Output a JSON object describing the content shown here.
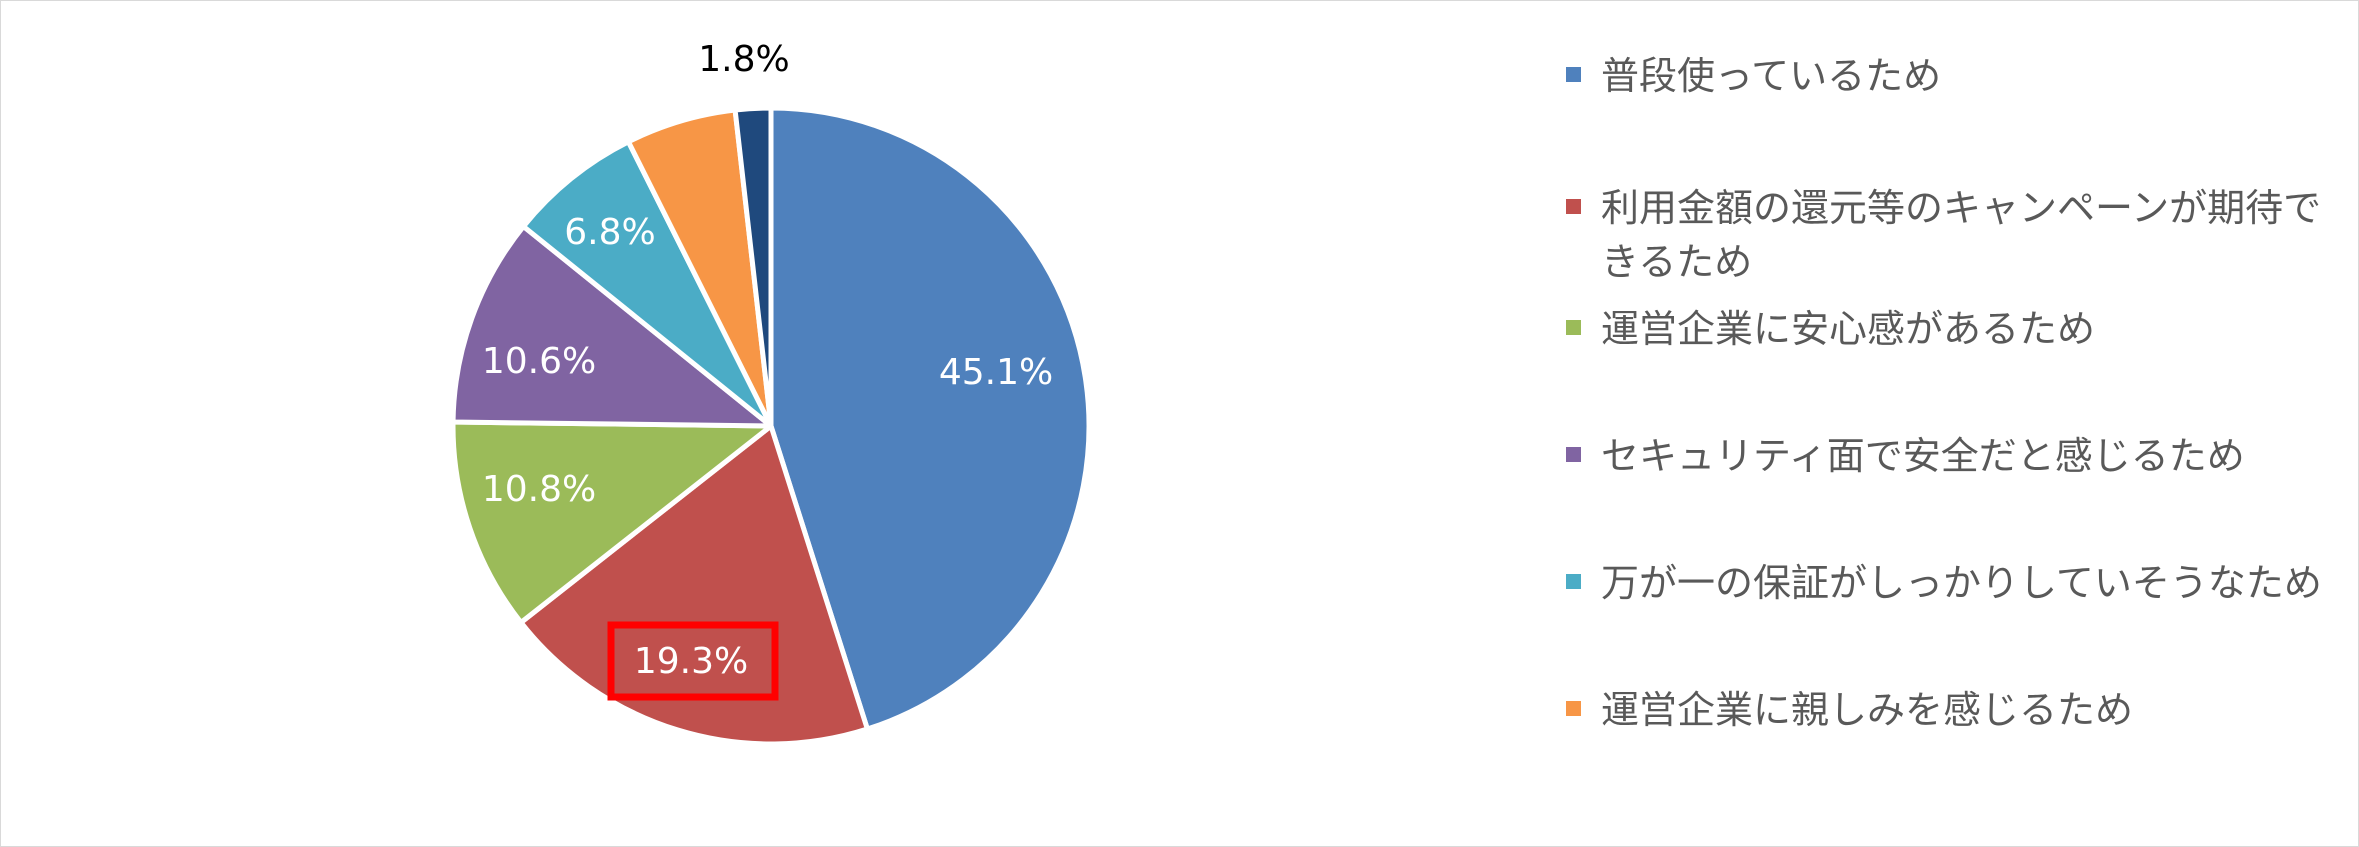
{
  "chart_data": {
    "type": "pie",
    "start_angle_deg": 0,
    "direction": "clockwise",
    "slices": [
      {
        "label": "普段使っているため",
        "value": 45.1,
        "color": "#4F81BD",
        "data_label": "45.1%",
        "label_color": "#ffffff"
      },
      {
        "label": "利用金額の還元等のキャンペーンが期待できるため",
        "value": 19.3,
        "color": "#C0504D",
        "data_label": "19.3%",
        "label_color": "#ffffff",
        "highlighted": true
      },
      {
        "label": "運営企業に安心感があるため",
        "value": 10.8,
        "color": "#9BBB59",
        "data_label": "10.8%",
        "label_color": "#ffffff"
      },
      {
        "label": "セキュリティ面で安全だと感じるため",
        "value": 10.6,
        "color": "#8064A2",
        "data_label": "10.6%",
        "label_color": "#ffffff"
      },
      {
        "label": "万が一の保証がしっかりしていそうなため",
        "value": 6.8,
        "color": "#4BACC6",
        "data_label": "6.8%",
        "label_color": "#ffffff"
      },
      {
        "label": "運営企業に親しみを感じるため",
        "value": 5.6,
        "color": "#F79646",
        "data_label": "",
        "label_color": "#ffffff"
      },
      {
        "label": "",
        "value": 1.8,
        "color": "#1F497D",
        "data_label": "1.8%",
        "label_color": "#000000",
        "label_outside": true
      }
    ],
    "legend_position": "right",
    "highlight_color": "#FF0000"
  }
}
